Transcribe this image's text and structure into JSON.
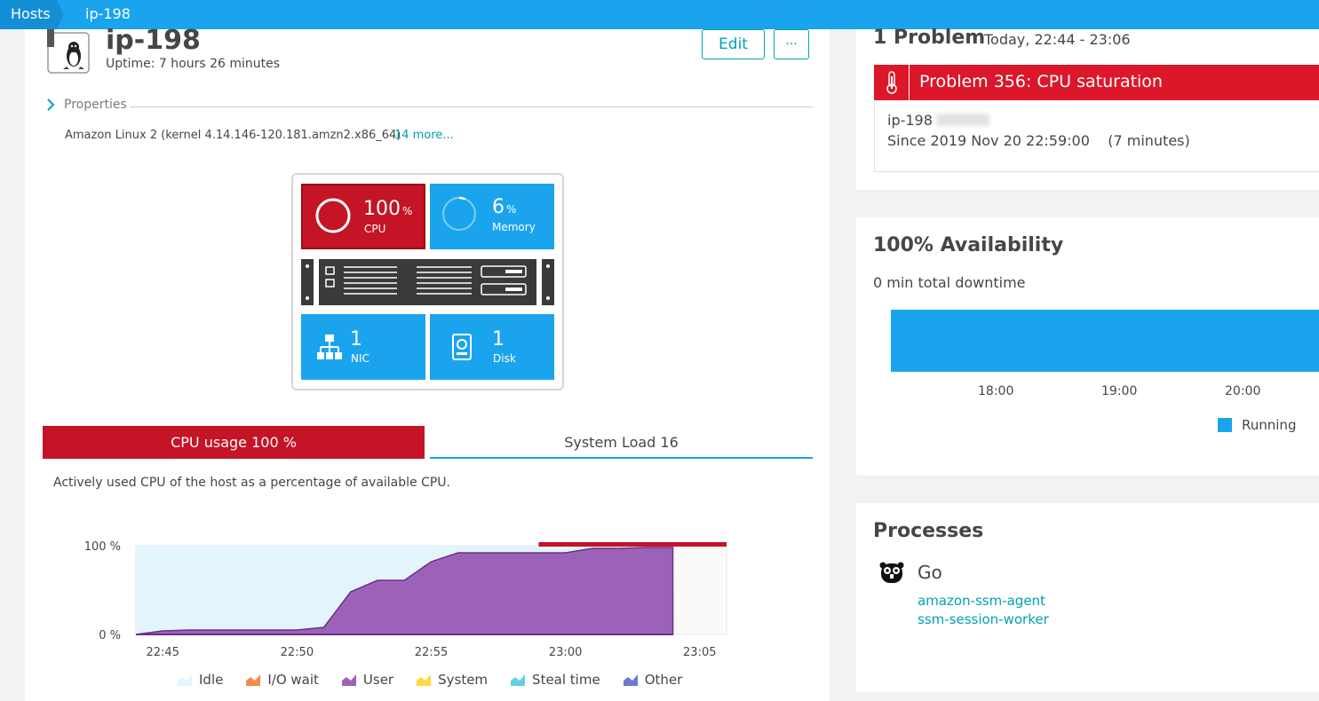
{
  "breadcrumb": {
    "root": "Hosts",
    "current": "ip-198"
  },
  "host": {
    "name": "ip-198",
    "uptime": "Uptime: 7 hours 26 minutes",
    "edit_label": "Edit",
    "more_label": "···",
    "properties_label": "Properties",
    "os": "Amazon Linux 2 (kernel 4.14.146-120.181.amzn2.x86_64)",
    "more_link": "14 more..."
  },
  "tiles": {
    "cpu": {
      "value": "100",
      "unit": "%",
      "label": "CPU",
      "fraction": 1.0
    },
    "memory": {
      "value": "6",
      "unit": "%",
      "label": "Memory",
      "fraction": 0.06
    },
    "nic": {
      "value": "1",
      "label": "NIC"
    },
    "disk": {
      "value": "1",
      "label": "Disk"
    }
  },
  "tabs": {
    "cpu": "CPU usage 100 %",
    "load": "System Load 16"
  },
  "chart_description": "Actively used CPU of the host as a percentage of available CPU.",
  "chart_data": {
    "type": "area",
    "xlabel": "",
    "ylabel": "",
    "x_ticks": [
      "22:45",
      "22:50",
      "22:55",
      "23:00",
      "23:05"
    ],
    "y_ticks": [
      "100 %",
      "0 %"
    ],
    "ylim": [
      0,
      100
    ],
    "xlim": [
      "22:44",
      "23:06"
    ],
    "series": [
      {
        "name": "User",
        "color": "#9c62b8",
        "points": [
          [
            "22:44",
            0
          ],
          [
            "22:45",
            4
          ],
          [
            "22:46",
            5
          ],
          [
            "22:47",
            5
          ],
          [
            "22:48",
            5
          ],
          [
            "22:49",
            5
          ],
          [
            "22:50",
            5
          ],
          [
            "22:51",
            8
          ],
          [
            "22:52",
            48
          ],
          [
            "22:53",
            61
          ],
          [
            "22:54",
            61
          ],
          [
            "22:55",
            82
          ],
          [
            "22:56",
            92
          ],
          [
            "22:57",
            92
          ],
          [
            "22:58",
            92
          ],
          [
            "22:59",
            92
          ],
          [
            "23:00",
            92
          ],
          [
            "23:01",
            97
          ],
          [
            "23:02",
            97
          ],
          [
            "23:03",
            98
          ],
          [
            "23:04",
            98
          ]
        ]
      }
    ],
    "idle_color": "#e4f4fc",
    "problem_range": [
      "22:59",
      "23:06"
    ],
    "legend": [
      {
        "name": "Idle",
        "color": "#e4f4fc"
      },
      {
        "name": "I/O wait",
        "color": "#ef8d4e"
      },
      {
        "name": "User",
        "color": "#9c62b8"
      },
      {
        "name": "System",
        "color": "#ffd93c"
      },
      {
        "name": "Steal time",
        "color": "#5fd4e0"
      },
      {
        "name": "Other",
        "color": "#6c79d9"
      }
    ]
  },
  "problem": {
    "heading": "1 Problem",
    "time_range": "Today, 22:44 - 23:06",
    "title": "Problem 356: CPU saturation",
    "host": "ip-198",
    "since": "Since 2019 Nov 20 22:59:00    (7 minutes)"
  },
  "availability": {
    "heading": "100% Availability",
    "downtime": "0 min total downtime",
    "ticks": [
      "18:00",
      "19:00",
      "20:00"
    ],
    "legend": "Running",
    "fraction": 1.0
  },
  "processes": {
    "heading": "Processes",
    "group": "Go",
    "items": [
      "amazon-ssm-agent",
      "ssm-session-worker"
    ]
  },
  "colors": {
    "accent": "#1ba4ee",
    "danger": "#c41425",
    "link": "#00a1b2"
  }
}
